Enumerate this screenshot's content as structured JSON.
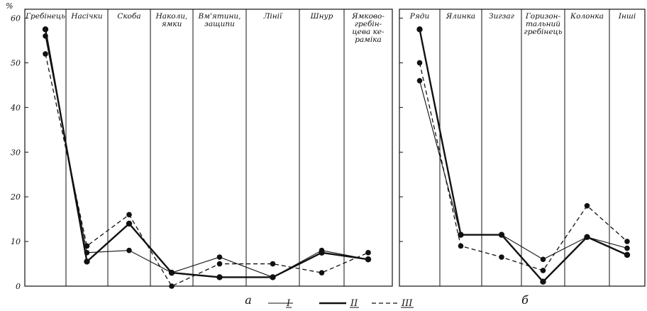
{
  "chart_data": [
    {
      "type": "line",
      "panel_label": "а",
      "ylabel": "%",
      "ylim": [
        0,
        62
      ],
      "yticks": [
        0,
        10,
        20,
        30,
        40,
        50,
        60
      ],
      "categories": [
        [
          "Гребінець"
        ],
        [
          "Насічки"
        ],
        [
          "Скоба"
        ],
        [
          "Наколи,",
          "ямки"
        ],
        [
          "Вм'ятини,",
          "защипи"
        ],
        [
          "Лінії"
        ],
        [
          "Шнур"
        ],
        [
          "Ямково-",
          "гребін-",
          "цева ке-",
          "раміка"
        ]
      ],
      "series": [
        {
          "name": "I",
          "style": "thin",
          "values": [
            56,
            7.5,
            8,
            3,
            6.5,
            2,
            8,
            6
          ]
        },
        {
          "name": "II",
          "style": "thick",
          "values": [
            57.5,
            5.5,
            14,
            3,
            2,
            2,
            7.5,
            6
          ]
        },
        {
          "name": "III",
          "style": "dashed",
          "values": [
            52,
            9,
            16,
            0,
            5,
            5,
            3,
            7.5
          ]
        }
      ]
    },
    {
      "type": "line",
      "panel_label": "б",
      "ylim": [
        0,
        62
      ],
      "categories": [
        [
          "Ряди"
        ],
        [
          "Ялинка"
        ],
        [
          "Зигзаг"
        ],
        [
          "Горизон-",
          "тальний",
          "гребінець"
        ],
        [
          "Колонка"
        ],
        [
          "Інші"
        ]
      ],
      "series": [
        {
          "name": "I",
          "style": "thin",
          "values": [
            46,
            11.5,
            11.5,
            6,
            11,
            8.5
          ]
        },
        {
          "name": "II",
          "style": "thick",
          "values": [
            57.5,
            11.5,
            11.5,
            1,
            11,
            7
          ]
        },
        {
          "name": "III",
          "style": "dashed",
          "values": [
            50,
            9,
            6.5,
            3.5,
            18,
            10
          ]
        }
      ]
    }
  ],
  "legend": [
    {
      "name": "I",
      "style": "thin"
    },
    {
      "name": "II",
      "style": "thick"
    },
    {
      "name": "III",
      "style": "dashed"
    }
  ]
}
